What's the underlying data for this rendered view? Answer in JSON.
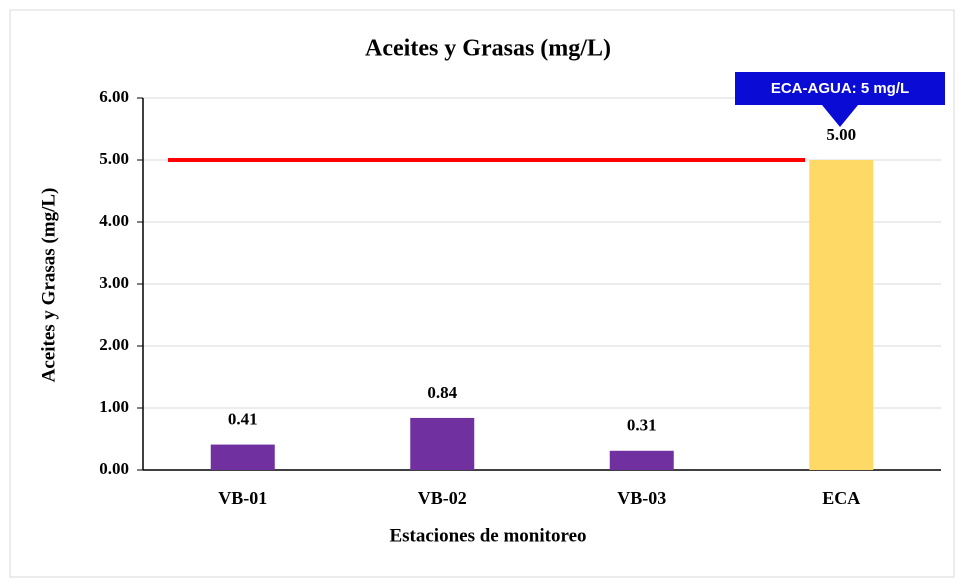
{
  "chart_data": {
    "type": "bar",
    "title": "Aceites y Grasas (mg/L)",
    "x_label": "Estaciones de monitoreo",
    "y_label": "Aceites y Grasas (mg/L)",
    "categories": [
      "VB-01",
      "VB-02",
      "VB-03",
      "ECA"
    ],
    "values": [
      0.41,
      0.84,
      0.31,
      5
    ],
    "value_labels": [
      "0.41",
      "0.84",
      "0.31",
      "5.00"
    ],
    "colors": [
      "#7030a0",
      "#7030a0",
      "#7030a0",
      "#ffd966"
    ],
    "ylim": [
      0,
      6
    ],
    "yticks": [
      {
        "value": 0,
        "label": "0.00"
      },
      {
        "value": 1,
        "label": "1.00"
      },
      {
        "value": 2,
        "label": "2.00"
      },
      {
        "value": 3,
        "label": "3.00"
      },
      {
        "value": 4,
        "label": "4.00"
      },
      {
        "value": 5,
        "label": "5.00"
      },
      {
        "value": 6,
        "label": "6.00"
      }
    ],
    "grid": true,
    "reference_line": {
      "value": 5,
      "color": "#ff0000"
    },
    "annotation": "ECA-AGUA: 5 mg/L"
  }
}
